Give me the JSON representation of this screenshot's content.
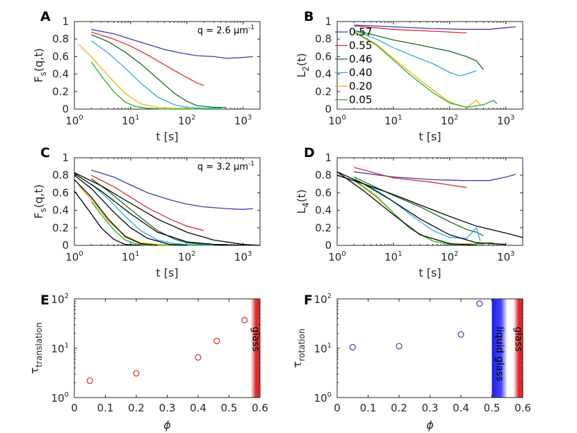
{
  "figure": {
    "colors": {
      "0.57": "#3b3bb3",
      "0.55": "#e0292b",
      "0.46": "#1d6b1d",
      "0.40": "#2aaae2",
      "0.20": "#f2ad1b",
      "0.05": "#22b322",
      "fit": "#000000"
    }
  },
  "chart_data": [
    {
      "id": "A",
      "panel_label": "A",
      "type": "line",
      "xscale": "log",
      "xlim": [
        1,
        2000
      ],
      "ylim": [
        0,
        1
      ],
      "xlabel": "t [s]",
      "ylabel": "F",
      "ylabel_sub": "s",
      "ylabel_rest": "(q,t)",
      "xtick_labels": [
        {
          "base": "10",
          "exp": "0"
        },
        {
          "base": "10",
          "exp": "1"
        },
        {
          "base": "10",
          "exp": "2"
        },
        {
          "base": "10",
          "exp": "3"
        }
      ],
      "ytick_labels": [
        "0",
        "0.2",
        "0.4",
        "0.6",
        "0.8",
        "1"
      ],
      "annotation": {
        "text": "q = 2.6 µm",
        "sup": "-1"
      },
      "series": [
        {
          "name": "0.57",
          "x": [
            2,
            5,
            10,
            20,
            40,
            80,
            150,
            300,
            500,
            1000,
            1500
          ],
          "y": [
            0.91,
            0.86,
            0.8,
            0.74,
            0.68,
            0.64,
            0.61,
            0.6,
            0.58,
            0.59,
            0.6
          ]
        },
        {
          "name": "0.55",
          "x": [
            2,
            5,
            10,
            20,
            50,
            100,
            150,
            200
          ],
          "y": [
            0.88,
            0.8,
            0.72,
            0.62,
            0.47,
            0.36,
            0.3,
            0.27
          ]
        },
        {
          "name": "0.46",
          "x": [
            2,
            4,
            8,
            15,
            30,
            60,
            100,
            150,
            300,
            500
          ],
          "y": [
            0.85,
            0.77,
            0.65,
            0.52,
            0.35,
            0.18,
            0.09,
            0.04,
            0.02,
            0.02
          ]
        },
        {
          "name": "0.40",
          "x": [
            2,
            4,
            8,
            15,
            30,
            60,
            100,
            200,
            400
          ],
          "y": [
            0.78,
            0.64,
            0.47,
            0.3,
            0.14,
            0.05,
            0.02,
            0.01,
            0.01
          ]
        },
        {
          "name": "0.20",
          "x": [
            1.2,
            2,
            4,
            8,
            15,
            30,
            60,
            200
          ],
          "y": [
            0.74,
            0.6,
            0.38,
            0.18,
            0.06,
            0.02,
            0.01,
            0
          ]
        },
        {
          "name": "0.05",
          "x": [
            2,
            3,
            5,
            8,
            12,
            20,
            40,
            100,
            400
          ],
          "y": [
            0.54,
            0.38,
            0.2,
            0.08,
            0.03,
            0.01,
            0,
            0,
            0
          ]
        }
      ]
    },
    {
      "id": "B",
      "panel_label": "B",
      "type": "line",
      "xscale": "log",
      "xlim": [
        1,
        2000
      ],
      "ylim": [
        0,
        1
      ],
      "xlabel": "t [s]",
      "ylabel": "L",
      "ylabel_sub": "2",
      "ylabel_rest": "(t)",
      "xtick_labels": [
        {
          "base": "10",
          "exp": "0"
        },
        {
          "base": "10",
          "exp": "1"
        },
        {
          "base": "10",
          "exp": "2"
        },
        {
          "base": "10",
          "exp": "3"
        }
      ],
      "ytick_labels": [
        "0",
        "0.2",
        "0.4",
        "0.6",
        "0.8",
        "1"
      ],
      "legend": [
        "0.57",
        "0.55",
        "0.46",
        "0.40",
        "0.20",
        "0.05"
      ],
      "series": [
        {
          "name": "0.57",
          "x": [
            2,
            10,
            50,
            200,
            500,
            1000,
            1500
          ],
          "y": [
            0.96,
            0.94,
            0.92,
            0.91,
            0.91,
            0.93,
            0.94
          ]
        },
        {
          "name": "0.55",
          "x": [
            2,
            10,
            50,
            100,
            200
          ],
          "y": [
            0.95,
            0.91,
            0.89,
            0.88,
            0.87
          ]
        },
        {
          "name": "0.46",
          "x": [
            2,
            5,
            10,
            30,
            100,
            200,
            300,
            400
          ],
          "y": [
            0.9,
            0.84,
            0.79,
            0.73,
            0.66,
            0.6,
            0.55,
            0.45
          ]
        },
        {
          "name": "0.40",
          "x": [
            2,
            5,
            10,
            20,
            50,
            100,
            150,
            200,
            300
          ],
          "y": [
            0.9,
            0.8,
            0.7,
            0.62,
            0.52,
            0.42,
            0.38,
            0.4,
            0.44
          ]
        },
        {
          "name": "0.20",
          "x": [
            2,
            5,
            10,
            20,
            50,
            100,
            200,
            300,
            350
          ],
          "y": [
            0.89,
            0.74,
            0.58,
            0.42,
            0.22,
            0.08,
            0.02,
            0.1,
            0.05
          ]
        },
        {
          "name": "0.05",
          "x": [
            2,
            5,
            10,
            20,
            50,
            100,
            200,
            400,
            600,
            700
          ],
          "y": [
            0.88,
            0.73,
            0.56,
            0.39,
            0.19,
            0.07,
            0.02,
            0.05,
            0.1,
            0.06
          ]
        }
      ]
    },
    {
      "id": "C",
      "panel_label": "C",
      "type": "line",
      "xscale": "log",
      "xlim": [
        1,
        2000
      ],
      "ylim": [
        0,
        1
      ],
      "xlabel": "t [s]",
      "ylabel": "F",
      "ylabel_sub": "s",
      "ylabel_rest": "(q,t)",
      "xtick_labels": [
        {
          "base": "10",
          "exp": "0"
        },
        {
          "base": "10",
          "exp": "1"
        },
        {
          "base": "10",
          "exp": "2"
        },
        {
          "base": "10",
          "exp": "3"
        }
      ],
      "ytick_labels": [
        "0",
        "0.2",
        "0.4",
        "0.6",
        "0.8",
        "1"
      ],
      "annotation": {
        "text": "q = 3.2 µm",
        "sup": "-1"
      },
      "series": [
        {
          "name": "0.57",
          "x": [
            2,
            5,
            10,
            20,
            50,
            100,
            200,
            500,
            1000,
            1500
          ],
          "y": [
            0.86,
            0.78,
            0.69,
            0.6,
            0.52,
            0.47,
            0.44,
            0.42,
            0.41,
            0.42
          ]
        },
        {
          "name": "0.55",
          "x": [
            2,
            5,
            10,
            20,
            50,
            100,
            200
          ],
          "y": [
            0.8,
            0.67,
            0.55,
            0.43,
            0.3,
            0.22,
            0.17
          ]
        },
        {
          "name": "0.46",
          "x": [
            2,
            4,
            8,
            15,
            30,
            60,
            100,
            200,
            500
          ],
          "y": [
            0.76,
            0.62,
            0.46,
            0.32,
            0.17,
            0.07,
            0.03,
            0.01,
            0.01
          ]
        },
        {
          "name": "0.40",
          "x": [
            2,
            4,
            8,
            15,
            30,
            60,
            100,
            300
          ],
          "y": [
            0.7,
            0.53,
            0.33,
            0.17,
            0.06,
            0.02,
            0.01,
            0
          ]
        },
        {
          "name": "0.20",
          "x": [
            1.2,
            2,
            4,
            8,
            15,
            30,
            100
          ],
          "y": [
            0.68,
            0.52,
            0.28,
            0.11,
            0.03,
            0.01,
            0
          ]
        },
        {
          "name": "0.05",
          "x": [
            2,
            3,
            5,
            8,
            12,
            20,
            50,
            200
          ],
          "y": [
            0.5,
            0.35,
            0.18,
            0.06,
            0.02,
            0,
            0,
            0
          ]
        },
        {
          "name": "fit",
          "x": [
            1,
            3,
            10,
            30,
            100,
            300,
            1000,
            2000
          ],
          "y": [
            0.83,
            0.68,
            0.48,
            0.3,
            0.15,
            0.06,
            0.01,
            0
          ]
        },
        {
          "name": "fit",
          "x": [
            1,
            3,
            10,
            30,
            100,
            300,
            1000
          ],
          "y": [
            0.82,
            0.62,
            0.36,
            0.15,
            0.04,
            0.01,
            0
          ]
        },
        {
          "name": "fit",
          "x": [
            1,
            2,
            5,
            10,
            20,
            50,
            100
          ],
          "y": [
            0.8,
            0.65,
            0.38,
            0.2,
            0.08,
            0.01,
            0
          ]
        },
        {
          "name": "fit",
          "x": [
            1,
            2,
            4,
            8,
            15,
            30
          ],
          "y": [
            0.75,
            0.55,
            0.3,
            0.1,
            0.02,
            0
          ]
        },
        {
          "name": "fit",
          "x": [
            1,
            1.5,
            2,
            3,
            5,
            8,
            15
          ],
          "y": [
            0.62,
            0.47,
            0.36,
            0.2,
            0.07,
            0.01,
            0
          ]
        }
      ]
    },
    {
      "id": "D",
      "panel_label": "D",
      "type": "line",
      "xscale": "log",
      "xlim": [
        1,
        2000
      ],
      "ylim": [
        0,
        1
      ],
      "xlabel": "t [s]",
      "ylabel": "L",
      "ylabel_sub": "4",
      "ylabel_rest": "(t)",
      "xtick_labels": [
        {
          "base": "10",
          "exp": "0"
        },
        {
          "base": "10",
          "exp": "1"
        },
        {
          "base": "10",
          "exp": "2"
        },
        {
          "base": "10",
          "exp": "3"
        }
      ],
      "ytick_labels": [
        "0",
        "0.2",
        "0.4",
        "0.6",
        "0.8",
        "1"
      ],
      "series": [
        {
          "name": "0.57",
          "x": [
            2,
            10,
            50,
            200,
            500,
            1000,
            1500
          ],
          "y": [
            0.84,
            0.78,
            0.75,
            0.74,
            0.74,
            0.78,
            0.81
          ]
        },
        {
          "name": "0.55",
          "x": [
            2,
            10,
            50,
            100,
            200
          ],
          "y": [
            0.89,
            0.77,
            0.72,
            0.69,
            0.66
          ]
        },
        {
          "name": "0.46",
          "x": [
            2,
            5,
            10,
            30,
            100,
            200,
            300,
            400
          ],
          "y": [
            0.78,
            0.66,
            0.57,
            0.44,
            0.27,
            0.18,
            0.15,
            0.11
          ]
        },
        {
          "name": "0.40",
          "x": [
            2,
            5,
            10,
            20,
            50,
            100,
            200,
            300,
            350
          ],
          "y": [
            0.76,
            0.63,
            0.5,
            0.35,
            0.17,
            0.09,
            0.08,
            0.2,
            0.05
          ]
        },
        {
          "name": "0.20",
          "x": [
            2,
            5,
            10,
            20,
            50,
            100,
            200,
            400
          ],
          "y": [
            0.74,
            0.55,
            0.37,
            0.19,
            0.05,
            0.01,
            0.02,
            0.01
          ]
        },
        {
          "name": "0.05",
          "x": [
            2,
            5,
            10,
            20,
            50,
            100,
            200,
            600
          ],
          "y": [
            0.75,
            0.56,
            0.37,
            0.19,
            0.05,
            0.01,
            0.01,
            0.03
          ]
        },
        {
          "name": "fit",
          "x": [
            1,
            3,
            10,
            30,
            100,
            300,
            1000,
            2000
          ],
          "y": [
            0.8,
            0.7,
            0.58,
            0.46,
            0.33,
            0.22,
            0.14,
            0.09
          ]
        },
        {
          "name": "fit",
          "x": [
            1,
            3,
            10,
            30,
            100,
            300,
            1000
          ],
          "y": [
            0.84,
            0.7,
            0.5,
            0.3,
            0.12,
            0.03,
            0.01
          ]
        },
        {
          "name": "fit",
          "x": [
            1,
            3,
            10,
            30,
            100,
            300
          ],
          "y": [
            0.84,
            0.62,
            0.35,
            0.12,
            0.02,
            0
          ]
        }
      ]
    },
    {
      "id": "E",
      "panel_label": "E",
      "type": "scatter",
      "xscale": "linear",
      "yscale": "log",
      "xlim": [
        0,
        0.6
      ],
      "ylim": [
        1,
        100
      ],
      "xlabel": "ϕ",
      "ylabel": "τ",
      "ylabel_sub": "translation",
      "ylabel_rest": "",
      "xtick_labels": [
        "0",
        "0.1",
        "0.2",
        "0.3",
        "0.4",
        "0.5",
        "0.6"
      ],
      "ytick_labels": [
        {
          "base": "10",
          "exp": "0"
        },
        {
          "base": "10",
          "exp": "1"
        },
        {
          "base": "10",
          "exp": "2"
        }
      ],
      "marker_color": "#e0292b",
      "points": [
        {
          "x": 0.05,
          "y": 2.2
        },
        {
          "x": 0.2,
          "y": 3.1
        },
        {
          "x": 0.4,
          "y": 6.5
        },
        {
          "x": 0.46,
          "y": 14
        },
        {
          "x": 0.55,
          "y": 37
        }
      ],
      "bands": [
        {
          "label": "glass",
          "from": 0.57,
          "to": 0.6,
          "color": "#e0292b"
        }
      ]
    },
    {
      "id": "F",
      "panel_label": "F",
      "type": "scatter",
      "xscale": "linear",
      "yscale": "log",
      "xlim": [
        0,
        0.6
      ],
      "ylim": [
        1,
        100
      ],
      "xlabel": "ϕ",
      "ylabel": "τ",
      "ylabel_sub": "rotation",
      "ylabel_rest": "",
      "xtick_labels": [
        "0",
        "0.1",
        "0.2",
        "0.3",
        "0.4",
        "0.5",
        "0.6"
      ],
      "ytick_labels": [
        {
          "base": "10",
          "exp": "0"
        },
        {
          "base": "10",
          "exp": "1"
        },
        {
          "base": "10",
          "exp": "2"
        }
      ],
      "marker_color": "#3b3bb3",
      "points": [
        {
          "x": 0.05,
          "y": 10.5
        },
        {
          "x": 0.2,
          "y": 11
        },
        {
          "x": 0.4,
          "y": 19
        },
        {
          "x": 0.46,
          "y": 80
        }
      ],
      "bands": [
        {
          "label": "liquid glass",
          "from": 0.5,
          "to": 0.55,
          "color": "#1c1cf0"
        },
        {
          "label": "glass",
          "from": 0.57,
          "to": 0.6,
          "color": "#e0292b"
        }
      ]
    }
  ]
}
